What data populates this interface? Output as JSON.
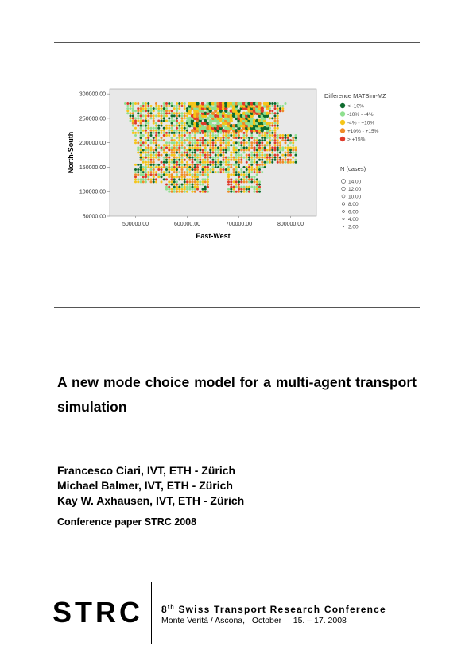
{
  "figure": {
    "chart_data": {
      "type": "scatter",
      "xlabel": "East-West",
      "ylabel": "North-South",
      "x_ticks": [
        "500000.00",
        "600000.00",
        "700000.00",
        "800000.00"
      ],
      "y_ticks": [
        "300000.00",
        "250000.00",
        "200000.00",
        "150000.00",
        "100000.00",
        "50000.00"
      ],
      "xlim": [
        450000,
        850000
      ],
      "ylim": [
        50000,
        310000
      ],
      "legend_color_title": "Difference MATSim-MZ",
      "legend_color_items": [
        {
          "label": "< -10%",
          "color": "#0e6b2e"
        },
        {
          "label": "-10% - -4%",
          "color": "#8fe08f"
        },
        {
          "label": "-4% - +10%",
          "color": "#f5c518"
        },
        {
          "label": "+10% - +15%",
          "color": "#f08c28"
        },
        {
          "label": "> +15%",
          "color": "#e03a2a"
        }
      ],
      "legend_size_title": "N (cases)",
      "legend_size_items": [
        "14.00",
        "12.00",
        "10.00",
        "8.00",
        "6.00",
        "4.00",
        "2.00"
      ],
      "colors": [
        "#0e6b2e",
        "#8fe08f",
        "#f5c518",
        "#f08c28",
        "#e03a2a"
      ],
      "plot_background": "#e8e8e8"
    }
  },
  "title": "A new mode choice model for a multi-agent transport simulation",
  "authors": [
    "Francesco Ciari, IVT, ETH - Zürich",
    "Michael Balmer, IVT, ETH - Zürich",
    "Kay W. Axhausen, IVT, ETH - Zürich"
  ],
  "conference_paper": "Conference paper STRC 2008",
  "footer": {
    "logo": "STRC",
    "ordinal_number": "8",
    "ordinal_suffix": "th",
    "conference_name": "Swiss Transport Research Conference",
    "venue": "Monte Verità / Ascona,   October     15. – 17. 2008"
  }
}
